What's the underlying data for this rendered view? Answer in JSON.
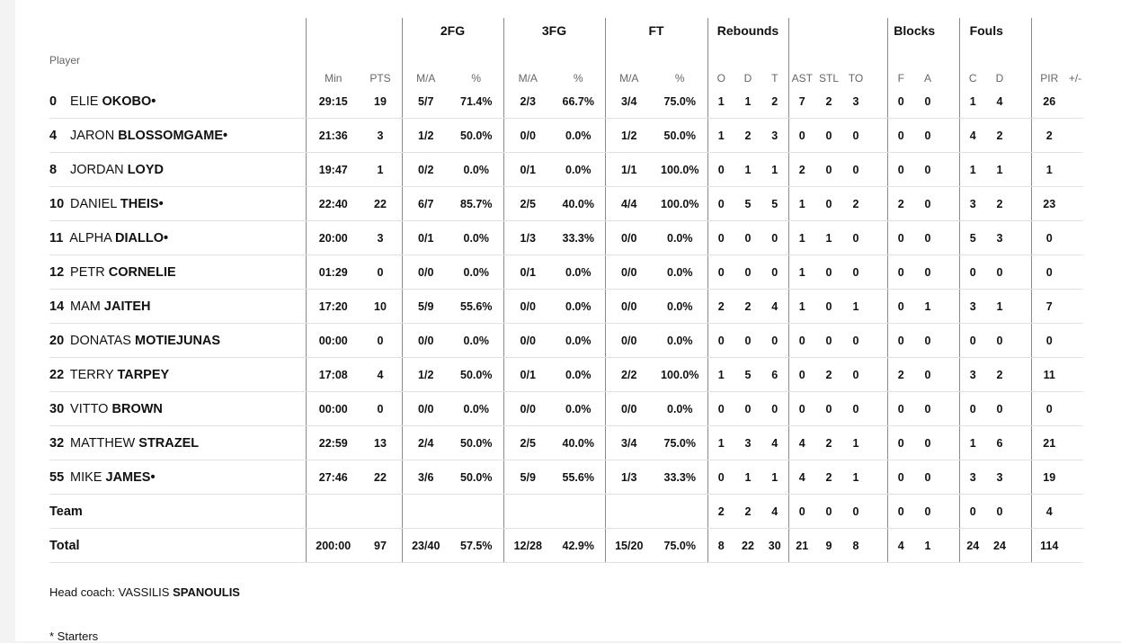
{
  "groups": {
    "fg2": "2FG",
    "fg3": "3FG",
    "ft": "FT",
    "reb": "Rebounds",
    "blk": "Blocks",
    "fouls": "Fouls"
  },
  "headers": {
    "player": "Player",
    "min": "Min",
    "pts": "PTS",
    "fg2_ma": "M/A",
    "fg2_pct": "%",
    "fg3_ma": "M/A",
    "fg3_pct": "%",
    "ft_ma": "M/A",
    "ft_pct": "%",
    "reb_o": "O",
    "reb_d": "D",
    "reb_t": "T",
    "ast": "AST",
    "stl": "STL",
    "to": "TO",
    "blk_f": "F",
    "blk_a": "A",
    "foul_c": "C",
    "foul_d": "D",
    "pir": "PIR",
    "pm": "+/-"
  },
  "players": [
    {
      "num": "0",
      "first": "ELIE",
      "last": "OKOBO",
      "starter": "•",
      "min": "29:15",
      "pts": "19",
      "fg2_ma": "5/7",
      "fg2_pct": "71.4%",
      "fg3_ma": "2/3",
      "fg3_pct": "66.7%",
      "ft_ma": "3/4",
      "ft_pct": "75.0%",
      "o": "1",
      "d": "1",
      "t": "2",
      "ast": "7",
      "stl": "2",
      "to": "3",
      "bf": "0",
      "ba": "0",
      "fc": "1",
      "fd": "4",
      "pir": "26",
      "pm": ""
    },
    {
      "num": "4",
      "first": "JARON",
      "last": "BLOSSOMGAME",
      "starter": "•",
      "min": "21:36",
      "pts": "3",
      "fg2_ma": "1/2",
      "fg2_pct": "50.0%",
      "fg3_ma": "0/0",
      "fg3_pct": "0.0%",
      "ft_ma": "1/2",
      "ft_pct": "50.0%",
      "o": "1",
      "d": "2",
      "t": "3",
      "ast": "0",
      "stl": "0",
      "to": "0",
      "bf": "0",
      "ba": "0",
      "fc": "4",
      "fd": "2",
      "pir": "2",
      "pm": ""
    },
    {
      "num": "8",
      "first": "JORDAN",
      "last": "LOYD",
      "starter": "",
      "min": "19:47",
      "pts": "1",
      "fg2_ma": "0/2",
      "fg2_pct": "0.0%",
      "fg3_ma": "0/1",
      "fg3_pct": "0.0%",
      "ft_ma": "1/1",
      "ft_pct": "100.0%",
      "o": "0",
      "d": "1",
      "t": "1",
      "ast": "2",
      "stl": "0",
      "to": "0",
      "bf": "0",
      "ba": "0",
      "fc": "1",
      "fd": "1",
      "pir": "1",
      "pm": ""
    },
    {
      "num": "10",
      "first": "DANIEL",
      "last": "THEIS",
      "starter": "•",
      "min": "22:40",
      "pts": "22",
      "fg2_ma": "6/7",
      "fg2_pct": "85.7%",
      "fg3_ma": "2/5",
      "fg3_pct": "40.0%",
      "ft_ma": "4/4",
      "ft_pct": "100.0%",
      "o": "0",
      "d": "5",
      "t": "5",
      "ast": "1",
      "stl": "0",
      "to": "2",
      "bf": "2",
      "ba": "0",
      "fc": "3",
      "fd": "2",
      "pir": "23",
      "pm": ""
    },
    {
      "num": "11",
      "first": "ALPHA",
      "last": "DIALLO",
      "starter": "•",
      "min": "20:00",
      "pts": "3",
      "fg2_ma": "0/1",
      "fg2_pct": "0.0%",
      "fg3_ma": "1/3",
      "fg3_pct": "33.3%",
      "ft_ma": "0/0",
      "ft_pct": "0.0%",
      "o": "0",
      "d": "0",
      "t": "0",
      "ast": "1",
      "stl": "1",
      "to": "0",
      "bf": "0",
      "ba": "0",
      "fc": "5",
      "fd": "3",
      "pir": "0",
      "pm": ""
    },
    {
      "num": "12",
      "first": "PETR",
      "last": "CORNELIE",
      "starter": "",
      "min": "01:29",
      "pts": "0",
      "fg2_ma": "0/0",
      "fg2_pct": "0.0%",
      "fg3_ma": "0/1",
      "fg3_pct": "0.0%",
      "ft_ma": "0/0",
      "ft_pct": "0.0%",
      "o": "0",
      "d": "0",
      "t": "0",
      "ast": "1",
      "stl": "0",
      "to": "0",
      "bf": "0",
      "ba": "0",
      "fc": "0",
      "fd": "0",
      "pir": "0",
      "pm": ""
    },
    {
      "num": "14",
      "first": "MAM",
      "last": "JAITEH",
      "starter": "",
      "min": "17:20",
      "pts": "10",
      "fg2_ma": "5/9",
      "fg2_pct": "55.6%",
      "fg3_ma": "0/0",
      "fg3_pct": "0.0%",
      "ft_ma": "0/0",
      "ft_pct": "0.0%",
      "o": "2",
      "d": "2",
      "t": "4",
      "ast": "1",
      "stl": "0",
      "to": "1",
      "bf": "0",
      "ba": "1",
      "fc": "3",
      "fd": "1",
      "pir": "7",
      "pm": ""
    },
    {
      "num": "20",
      "first": "DONATAS",
      "last": "MOTIEJUNAS",
      "starter": "",
      "min": "00:00",
      "pts": "0",
      "fg2_ma": "0/0",
      "fg2_pct": "0.0%",
      "fg3_ma": "0/0",
      "fg3_pct": "0.0%",
      "ft_ma": "0/0",
      "ft_pct": "0.0%",
      "o": "0",
      "d": "0",
      "t": "0",
      "ast": "0",
      "stl": "0",
      "to": "0",
      "bf": "0",
      "ba": "0",
      "fc": "0",
      "fd": "0",
      "pir": "0",
      "pm": ""
    },
    {
      "num": "22",
      "first": "TERRY",
      "last": "TARPEY",
      "starter": "",
      "min": "17:08",
      "pts": "4",
      "fg2_ma": "1/2",
      "fg2_pct": "50.0%",
      "fg3_ma": "0/1",
      "fg3_pct": "0.0%",
      "ft_ma": "2/2",
      "ft_pct": "100.0%",
      "o": "1",
      "d": "5",
      "t": "6",
      "ast": "0",
      "stl": "2",
      "to": "0",
      "bf": "2",
      "ba": "0",
      "fc": "3",
      "fd": "2",
      "pir": "11",
      "pm": ""
    },
    {
      "num": "30",
      "first": "VITTO",
      "last": "BROWN",
      "starter": "",
      "min": "00:00",
      "pts": "0",
      "fg2_ma": "0/0",
      "fg2_pct": "0.0%",
      "fg3_ma": "0/0",
      "fg3_pct": "0.0%",
      "ft_ma": "0/0",
      "ft_pct": "0.0%",
      "o": "0",
      "d": "0",
      "t": "0",
      "ast": "0",
      "stl": "0",
      "to": "0",
      "bf": "0",
      "ba": "0",
      "fc": "0",
      "fd": "0",
      "pir": "0",
      "pm": ""
    },
    {
      "num": "32",
      "first": "MATTHEW",
      "last": "STRAZEL",
      "starter": "",
      "min": "22:59",
      "pts": "13",
      "fg2_ma": "2/4",
      "fg2_pct": "50.0%",
      "fg3_ma": "2/5",
      "fg3_pct": "40.0%",
      "ft_ma": "3/4",
      "ft_pct": "75.0%",
      "o": "1",
      "d": "3",
      "t": "4",
      "ast": "4",
      "stl": "2",
      "to": "1",
      "bf": "0",
      "ba": "0",
      "fc": "1",
      "fd": "6",
      "pir": "21",
      "pm": ""
    },
    {
      "num": "55",
      "first": "MIKE",
      "last": "JAMES",
      "starter": "•",
      "min": "27:46",
      "pts": "22",
      "fg2_ma": "3/6",
      "fg2_pct": "50.0%",
      "fg3_ma": "5/9",
      "fg3_pct": "55.6%",
      "ft_ma": "1/3",
      "ft_pct": "33.3%",
      "o": "0",
      "d": "1",
      "t": "1",
      "ast": "4",
      "stl": "2",
      "to": "1",
      "bf": "0",
      "ba": "0",
      "fc": "3",
      "fd": "3",
      "pir": "19",
      "pm": ""
    }
  ],
  "team": {
    "label": "Team",
    "min": "",
    "pts": "",
    "fg2_ma": "",
    "fg2_pct": "",
    "fg3_ma": "",
    "fg3_pct": "",
    "ft_ma": "",
    "ft_pct": "",
    "o": "2",
    "d": "2",
    "t": "4",
    "ast": "0",
    "stl": "0",
    "to": "0",
    "bf": "0",
    "ba": "0",
    "fc": "0",
    "fd": "0",
    "pir": "4",
    "pm": ""
  },
  "total": {
    "label": "Total",
    "min": "200:00",
    "pts": "97",
    "fg2_ma": "23/40",
    "fg2_pct": "57.5%",
    "fg3_ma": "12/28",
    "fg3_pct": "42.9%",
    "ft_ma": "15/20",
    "ft_pct": "75.0%",
    "o": "8",
    "d": "22",
    "t": "30",
    "ast": "21",
    "stl": "9",
    "to": "8",
    "bf": "4",
    "ba": "1",
    "fc": "24",
    "fd": "24",
    "pir": "114",
    "pm": ""
  },
  "coach": {
    "label": "Head coach:",
    "first": "VASSILIS",
    "last": "SPANOULIS"
  },
  "footnote": "* Starters"
}
